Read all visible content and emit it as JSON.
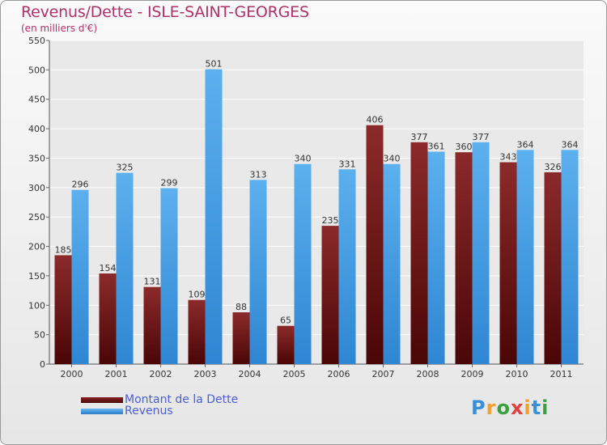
{
  "chart_data": {
    "type": "bar",
    "title": "Revenus/Dette - ISLE-SAINT-GEORGES",
    "subtitle": "(en milliers d'€)",
    "categories": [
      "2000",
      "2001",
      "2002",
      "2003",
      "2004",
      "2005",
      "2006",
      "2007",
      "2008",
      "2009",
      "2010",
      "2011"
    ],
    "series": [
      {
        "name": "Montant de la Dette",
        "color": "#7a1a1a",
        "values": [
          185,
          154,
          131,
          109,
          88,
          65,
          235,
          406,
          377,
          360,
          343,
          326
        ]
      },
      {
        "name": "Revenus",
        "color": "#4aa3e8",
        "values": [
          296,
          325,
          299,
          501,
          313,
          340,
          331,
          340,
          361,
          377,
          364,
          364
        ]
      }
    ],
    "yticks": [
      0,
      50,
      100,
      150,
      200,
      250,
      300,
      350,
      400,
      450,
      500,
      550
    ],
    "ylim": [
      0,
      550
    ],
    "grid": true,
    "legend_position": "bottom-left"
  },
  "logo": {
    "letters": [
      "P",
      "r",
      "o",
      "x",
      "i",
      "t",
      "i"
    ],
    "colors": [
      "#3a8fd8",
      "#f0a030",
      "#3aa040",
      "#e04040",
      "#f0a030",
      "#3a8fd8",
      "#3aa040"
    ]
  }
}
